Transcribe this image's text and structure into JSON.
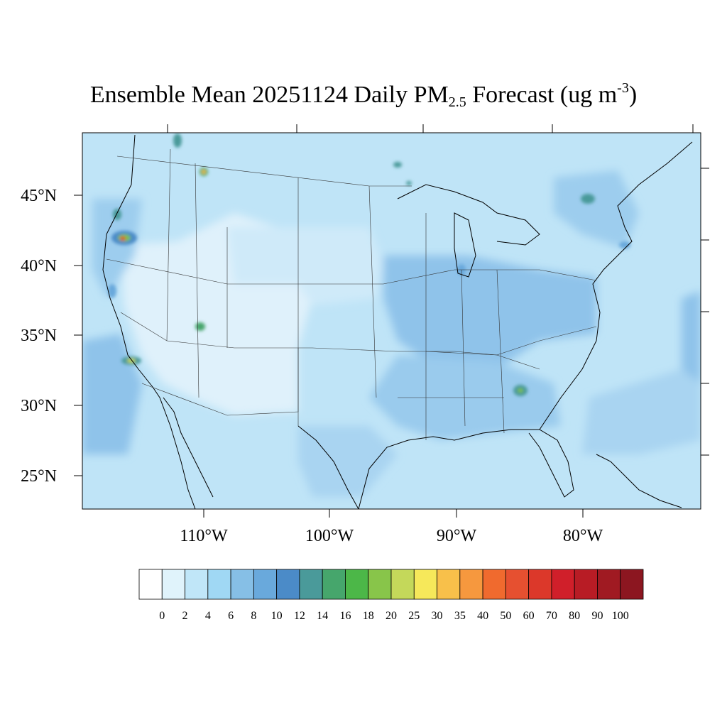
{
  "title": {
    "prefix": "Ensemble Mean 20251124 Daily PM",
    "subscript": "2.5",
    "middle": " Forecast (ug m",
    "superscript": "-3",
    "suffix": ")"
  },
  "map": {
    "lat_labels": [
      "45°N",
      "40°N",
      "35°N",
      "30°N",
      "25°N"
    ],
    "lon_labels": [
      "110°W",
      "100°W",
      "90°W",
      "80°W"
    ],
    "background_color": "#bfe4f7",
    "land_low_color": "#dff1fb",
    "hotspot_colors": [
      "#7dc242",
      "#f2e45a",
      "#e0402a"
    ]
  },
  "colorbar": {
    "labels": [
      "0",
      "2",
      "4",
      "6",
      "8",
      "10",
      "12",
      "14",
      "16",
      "18",
      "20",
      "25",
      "30",
      "35",
      "40",
      "50",
      "60",
      "70",
      "80",
      "90",
      "100"
    ],
    "colors": [
      "#ffffff",
      "#e0f3fb",
      "#c0e6f8",
      "#a0d8f4",
      "#86bfe6",
      "#69a9dc",
      "#4b8bc8",
      "#4a9a9a",
      "#46a66c",
      "#4cb748",
      "#88c54a",
      "#c4d85a",
      "#f6e85a",
      "#f8c04a",
      "#f6983e",
      "#f06a2e",
      "#e65030",
      "#dc382a",
      "#d01f2a",
      "#b81c25",
      "#a01a22",
      "#8c1620"
    ]
  }
}
